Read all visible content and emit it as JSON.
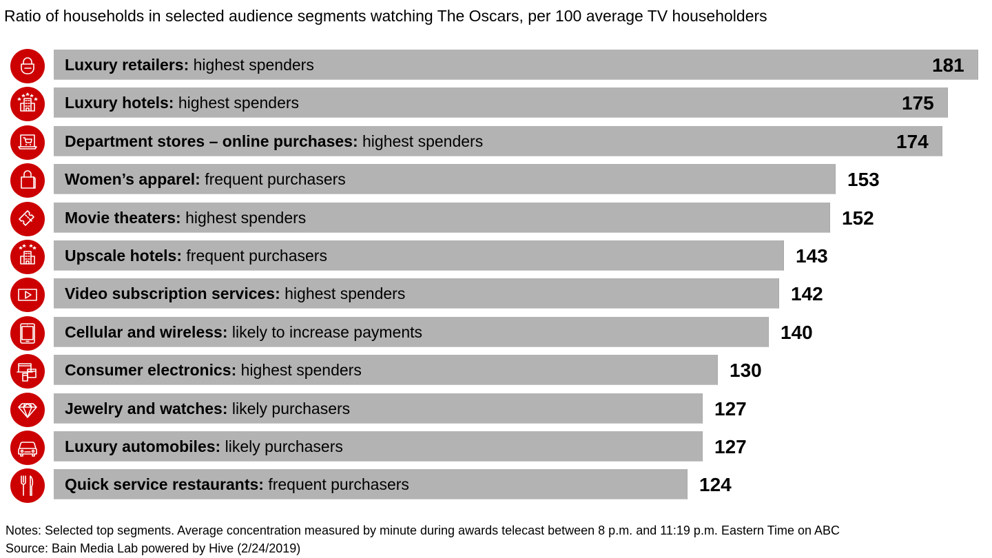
{
  "chart_data": {
    "type": "bar",
    "orientation": "horizontal",
    "title": "Ratio of households in selected audience segments watching The Oscars, per 100 average TV householders",
    "xlabel": "",
    "ylabel": "",
    "xlim": [
      0,
      181
    ],
    "grid": false,
    "bar_color": "#b3b3b3",
    "icon_color": "#cc0000",
    "categories": [
      {
        "name": "Luxury retailers:",
        "desc": "highest spenders",
        "value": 181,
        "icon": "shopping-basket-icon"
      },
      {
        "name": "Luxury hotels:",
        "desc": "highest spenders",
        "value": 175,
        "icon": "luxury-hotel-icon"
      },
      {
        "name": "Department stores – online purchases:",
        "desc": "highest spenders",
        "value": 174,
        "icon": "laptop-cart-icon"
      },
      {
        "name": "Women’s apparel:",
        "desc": "frequent purchasers",
        "value": 153,
        "icon": "shopping-bag-icon"
      },
      {
        "name": "Movie theaters:",
        "desc": "highest spenders",
        "value": 152,
        "icon": "ticket-icon"
      },
      {
        "name": "Upscale hotels:",
        "desc": "frequent purchasers",
        "value": 143,
        "icon": "upscale-hotel-icon"
      },
      {
        "name": "Video subscription services:",
        "desc": "highest spenders",
        "value": 142,
        "icon": "video-play-icon"
      },
      {
        "name": "Cellular and wireless:",
        "desc": "likely to increase payments",
        "value": 140,
        "icon": "smartphone-icon"
      },
      {
        "name": "Consumer electronics:",
        "desc": "highest spenders",
        "value": 130,
        "icon": "devices-icon"
      },
      {
        "name": "Jewelry and watches:",
        "desc": "likely purchasers",
        "value": 127,
        "icon": "diamond-icon"
      },
      {
        "name": "Luxury automobiles:",
        "desc": "likely purchasers",
        "value": 127,
        "icon": "car-icon"
      },
      {
        "name": "Quick service restaurants:",
        "desc": "frequent purchasers",
        "value": 124,
        "icon": "fork-knife-icon"
      }
    ]
  },
  "footer": {
    "notes": "Notes: Selected top segments. Average concentration measured by minute during awards telecast between 8 p.m. and 11:19 p.m. Eastern Time on ABC",
    "source": "Source: Bain Media Lab powered by Hive (2/24/2019)"
  }
}
